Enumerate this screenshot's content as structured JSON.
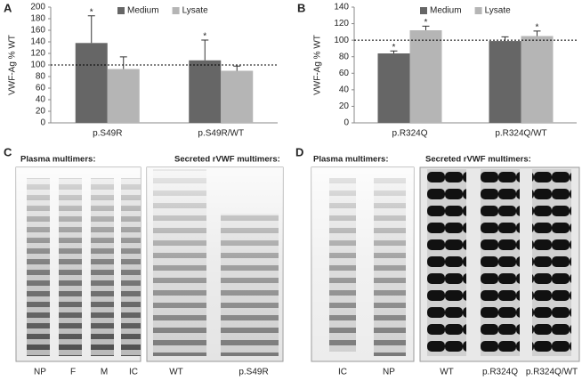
{
  "chart_data": [
    {
      "type": "bar",
      "panel": "A",
      "y_label": "VWF-Ag % WT",
      "categories": [
        "p.S49R",
        "p.S49R/WT"
      ],
      "series": [
        {
          "name": "Medium",
          "color": "#666666",
          "values": [
            138,
            108
          ],
          "errors": [
            47,
            35
          ],
          "annotations": [
            "*",
            "*"
          ]
        },
        {
          "name": "Lysate",
          "color": "#b5b5b5",
          "values": [
            93,
            90
          ],
          "errors": [
            21,
            8
          ],
          "annotations": [
            null,
            null
          ]
        }
      ],
      "ylim": [
        0,
        200
      ],
      "yticks": [
        0,
        20,
        40,
        60,
        80,
        100,
        120,
        140,
        160,
        180,
        200
      ],
      "reference_line": 100,
      "legend": "top"
    },
    {
      "type": "bar",
      "panel": "B",
      "y_label": "VWF-Ag % WT",
      "categories": [
        "p.R324Q",
        "p.R324Q/WT"
      ],
      "series": [
        {
          "name": "Medium",
          "color": "#666666",
          "values": [
            84,
            99
          ],
          "errors": [
            3,
            5
          ],
          "annotations": [
            "*",
            null
          ]
        },
        {
          "name": "Lysate",
          "color": "#b5b5b5",
          "values": [
            112,
            105
          ],
          "errors": [
            5,
            6
          ],
          "annotations": [
            "*",
            "*"
          ]
        }
      ],
      "ylim": [
        0,
        140
      ],
      "yticks": [
        0,
        20,
        40,
        60,
        80,
        100,
        120,
        140
      ],
      "reference_line": 100,
      "legend": "top"
    }
  ],
  "gels": [
    {
      "panel": "C",
      "plasma_title": "Plasma multimers:",
      "secreted_title": "Secreted rVWF multimers:",
      "plasma_lanes": [
        "NP",
        "F",
        "M",
        "IC"
      ],
      "secreted_lanes": [
        "WT",
        "p.S49R"
      ]
    },
    {
      "panel": "D",
      "plasma_title": "Plasma multimers:",
      "secreted_title": "Secreted rVWF multimers:",
      "plasma_lanes": [
        "IC",
        "NP"
      ],
      "secreted_lanes": [
        "WT",
        "p.R324Q",
        "p.R324Q/WT"
      ]
    }
  ]
}
